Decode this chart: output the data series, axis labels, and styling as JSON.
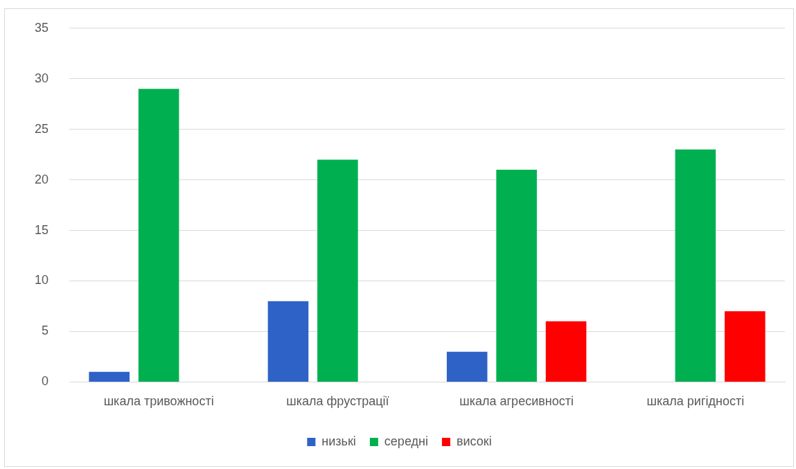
{
  "chart_data": {
    "type": "bar",
    "categories": [
      "шкала тривожності",
      "шкала фрустрації",
      "шкала агресивності",
      "шкала ригідності"
    ],
    "series": [
      {
        "name": "низькі",
        "color": "#2e62c6",
        "values": [
          1,
          8,
          3,
          null
        ]
      },
      {
        "name": "середні",
        "color": "#00b050",
        "values": [
          29,
          22,
          21,
          23
        ]
      },
      {
        "name": "високі",
        "color": "#ff0000",
        "values": [
          null,
          null,
          6,
          7
        ]
      }
    ],
    "ylim": [
      0,
      35
    ],
    "yticks": [
      0,
      5,
      10,
      15,
      20,
      25,
      30,
      35
    ],
    "grid": "y",
    "legend": "bottom"
  }
}
